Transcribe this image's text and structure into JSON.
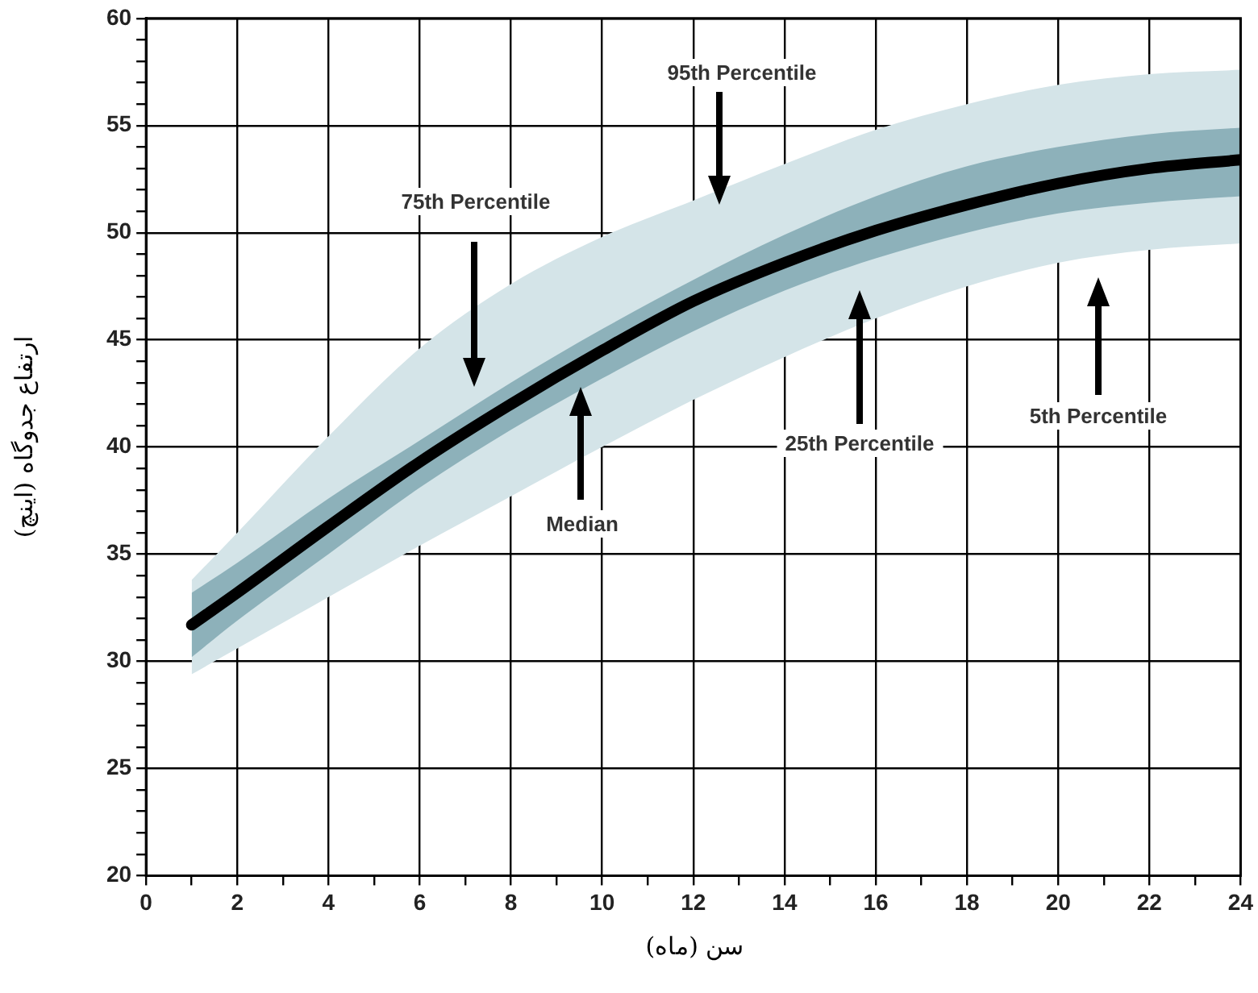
{
  "chart_data": {
    "type": "line",
    "xlabel": "سن (ماه)",
    "ylabel": "ارتفاع جدوگاه (اینچ)",
    "x": [
      1,
      2,
      4,
      6,
      8,
      10,
      12,
      14,
      16,
      18,
      20,
      22,
      24
    ],
    "series": [
      {
        "color": "#d4e4e8",
        "values": [
          null,
          null,
          null,
          null,
          null,
          null,
          null,
          null,
          null,
          null,
          null,
          null,
          null
        ],
        "lower": [
          29.4,
          30.6,
          33.0,
          35.4,
          37.7,
          40.0,
          42.2,
          44.2,
          46.0,
          47.5,
          48.6,
          49.2,
          49.5
        ],
        "upper": [
          33.8,
          36.0,
          40.5,
          44.6,
          47.6,
          49.8,
          51.5,
          53.2,
          54.8,
          56.0,
          56.9,
          57.4,
          57.6
        ]
      },
      {
        "color": "#8db1ba",
        "values": [
          null,
          null,
          null,
          null,
          null,
          null,
          null,
          null,
          null,
          null,
          null,
          null,
          null
        ],
        "lower": [
          30.2,
          31.9,
          35.0,
          38.1,
          40.8,
          43.2,
          45.4,
          47.3,
          48.8,
          50.0,
          50.9,
          51.4,
          51.7
        ],
        "upper": [
          33.2,
          34.6,
          37.6,
          40.3,
          43.0,
          45.5,
          47.8,
          49.9,
          51.7,
          53.1,
          54.0,
          54.6,
          54.9
        ]
      },
      {
        "color": "#000000",
        "values": [
          31.7,
          33.2,
          36.3,
          39.3,
          42.0,
          44.5,
          46.8,
          48.6,
          50.1,
          51.3,
          52.3,
          53.0,
          53.4
        ]
      }
    ],
    "xlim": [
      0,
      24
    ],
    "xticks": [
      0,
      {
        "value": 1,
        "label": null
      },
      2,
      {
        "value": 3,
        "label": null
      },
      4,
      {
        "value": 5,
        "label": null
      },
      6,
      {
        "value": 7,
        "label": null
      },
      8,
      {
        "value": 9,
        "label": null
      },
      10,
      {
        "value": 11,
        "label": null
      },
      12,
      {
        "value": 13,
        "label": null
      },
      14,
      {
        "value": 15,
        "label": null
      },
      16,
      {
        "value": 17,
        "label": null
      },
      18,
      {
        "value": 19,
        "label": null
      },
      20,
      {
        "value": 21,
        "label": null
      },
      22,
      {
        "value": 23,
        "label": null
      },
      24
    ],
    "ylim": [
      20,
      60
    ],
    "yticks": [
      20,
      {
        "value": 21,
        "label": null
      },
      {
        "value": 22,
        "label": null
      },
      {
        "value": 23,
        "label": null
      },
      {
        "value": 24,
        "label": null
      },
      25,
      {
        "value": 26,
        "label": null
      },
      {
        "value": 27,
        "label": null
      },
      {
        "value": 28,
        "label": null
      },
      {
        "value": 29,
        "label": null
      },
      30,
      {
        "value": 31,
        "label": null
      },
      {
        "value": 32,
        "label": null
      },
      {
        "value": 33,
        "label": null
      },
      {
        "value": 34,
        "label": null
      },
      35,
      {
        "value": 36,
        "label": null
      },
      {
        "value": 37,
        "label": null
      },
      {
        "value": 38,
        "label": null
      },
      {
        "value": 39,
        "label": null
      },
      40,
      {
        "value": 41,
        "label": null
      },
      {
        "value": 42,
        "label": null
      },
      {
        "value": 43,
        "label": null
      },
      {
        "value": 44,
        "label": null
      },
      45,
      {
        "value": 46,
        "label": null
      },
      {
        "value": 47,
        "label": null
      },
      {
        "value": 48,
        "label": null
      },
      {
        "value": 49,
        "label": null
      },
      50,
      {
        "value": 51,
        "label": null
      },
      {
        "value": 52,
        "label": null
      },
      {
        "value": 53,
        "label": null
      },
      {
        "value": 54,
        "label": null
      },
      55,
      {
        "value": 56,
        "label": null
      },
      {
        "value": 57,
        "label": null
      },
      {
        "value": 58,
        "label": null
      },
      {
        "value": 59,
        "label": null
      },
      60
    ],
    "grid": true,
    "marker": "none",
    "line_style": "solid",
    "annotations": [
      "95th Percentile",
      "75th Percentile",
      "Median",
      "25th Percentile",
      "5th Percentile"
    ]
  }
}
